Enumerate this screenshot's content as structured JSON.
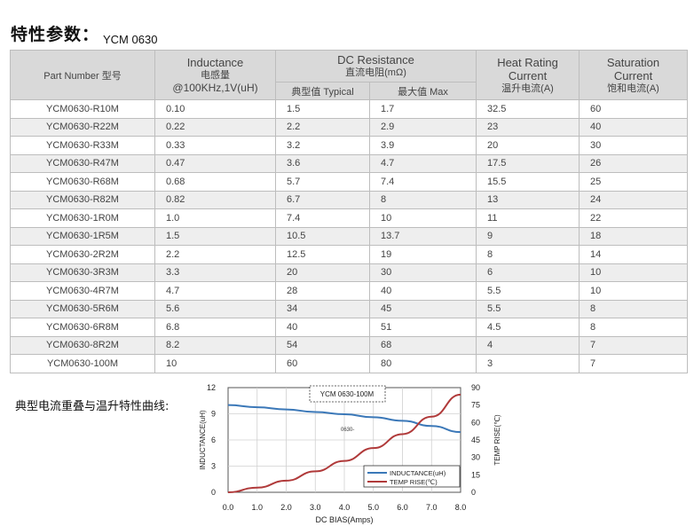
{
  "title": "特性参数：",
  "model": "YCM 0630",
  "table": {
    "headers": {
      "part_number": "Part Number  型号",
      "inductance_en": "Inductance",
      "inductance_cn": "电感量",
      "inductance_unit": "@100KHz,1V(uH)",
      "dcr_en": "DC Resistance",
      "dcr_cn": "直流电阻(mΩ)",
      "dcr_typical": "典型值 Typical",
      "dcr_max": "最大值 Max",
      "heat_en1": "Heat Rating",
      "heat_en2": "Current",
      "heat_cn": "温升电流(A)",
      "sat_en1": "Saturation",
      "sat_en2": "Current",
      "sat_cn": "饱和电流(A)"
    },
    "rows": [
      {
        "pn": "YCM0630-R10M",
        "l": "0.10",
        "typ": "1.5",
        "max": "1.7",
        "heat": "32.5",
        "sat": "60"
      },
      {
        "pn": "YCM0630-R22M",
        "l": "0.22",
        "typ": "2.2",
        "max": "2.9",
        "heat": "23",
        "sat": "40"
      },
      {
        "pn": "YCM0630-R33M",
        "l": "0.33",
        "typ": "3.2",
        "max": "3.9",
        "heat": "20",
        "sat": "30"
      },
      {
        "pn": "YCM0630-R47M",
        "l": "0.47",
        "typ": "3.6",
        "max": "4.7",
        "heat": "17.5",
        "sat": "26"
      },
      {
        "pn": "YCM0630-R68M",
        "l": "0.68",
        "typ": "5.7",
        "max": "7.4",
        "heat": "15.5",
        "sat": "25"
      },
      {
        "pn": "YCM0630-R82M",
        "l": "0.82",
        "typ": "6.7",
        "max": "8",
        "heat": "13",
        "sat": "24"
      },
      {
        "pn": "YCM0630-1R0M",
        "l": "1.0",
        "typ": "7.4",
        "max": "10",
        "heat": "11",
        "sat": "22"
      },
      {
        "pn": "YCM0630-1R5M",
        "l": "1.5",
        "typ": "10.5",
        "max": "13.7",
        "heat": "9",
        "sat": "18"
      },
      {
        "pn": "YCM0630-2R2M",
        "l": "2.2",
        "typ": "12.5",
        "max": "19",
        "heat": "8",
        "sat": "14"
      },
      {
        "pn": "YCM0630-3R3M",
        "l": "3.3",
        "typ": "20",
        "max": "30",
        "heat": "6",
        "sat": "10"
      },
      {
        "pn": "YCM0630-4R7M",
        "l": "4.7",
        "typ": "28",
        "max": "40",
        "heat": "5.5",
        "sat": "10"
      },
      {
        "pn": "YCM0630-5R6M",
        "l": "5.6",
        "typ": "34",
        "max": "45",
        "heat": "5.5",
        "sat": "8"
      },
      {
        "pn": "YCM0630-6R8M",
        "l": "6.8",
        "typ": "40",
        "max": "51",
        "heat": "4.5",
        "sat": "8"
      },
      {
        "pn": "YCM0630-8R2M",
        "l": "8.2",
        "typ": "54",
        "max": "68",
        "heat": "4",
        "sat": "7"
      },
      {
        "pn": "YCM0630-100M",
        "l": "10",
        "typ": "60",
        "max": "80",
        "heat": "3",
        "sat": "7"
      }
    ]
  },
  "curve_label": "典型电流重叠与温升特性曲线:",
  "chart_data": {
    "type": "line",
    "title": "YCM 0630-100M",
    "annotation": "0630-",
    "xlabel": "DC BIAS(Amps)",
    "ylabel_left": "INDUCTANCE(uH)",
    "ylabel_right": "TEMP RISE(℃)",
    "xlim": [
      0,
      8
    ],
    "ylim_left": [
      0,
      12
    ],
    "ylim_right": [
      0,
      90
    ],
    "x_ticks": [
      "0.0",
      "1.0",
      "2.0",
      "3.0",
      "4.0",
      "5.0",
      "6.0",
      "7.0",
      "8.0"
    ],
    "y_left_ticks": [
      "0",
      "3",
      "6",
      "9",
      "12"
    ],
    "y_right_ticks": [
      "0",
      "15",
      "30",
      "45",
      "60",
      "75",
      "90"
    ],
    "grid": true,
    "legend_position": "bottom-right",
    "series": [
      {
        "name": "INDUCTANCE(uH)",
        "axis": "left",
        "color": "#3b78b8",
        "x": [
          0,
          1,
          2,
          3,
          4,
          5,
          6,
          7,
          8
        ],
        "y": [
          10.0,
          9.75,
          9.5,
          9.2,
          8.95,
          8.6,
          8.2,
          7.6,
          6.9
        ]
      },
      {
        "name": "TEMP RISE(℃)",
        "axis": "right",
        "color": "#b03a3a",
        "x": [
          0,
          1,
          2,
          3,
          4,
          5,
          6,
          7,
          8
        ],
        "y": [
          0,
          4,
          10,
          18,
          27,
          38,
          50,
          65,
          84
        ]
      }
    ]
  }
}
